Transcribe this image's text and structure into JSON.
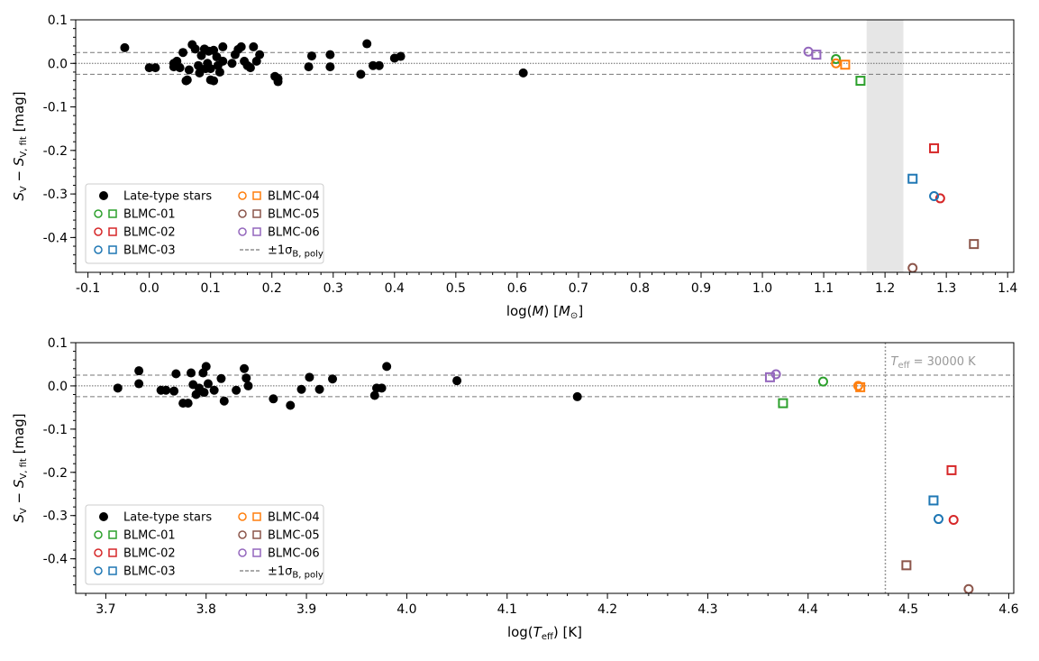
{
  "chart_data": [
    {
      "type": "scatter",
      "panel": "top",
      "xlabel": "log(M) [M_sun]",
      "xlabel_parts": {
        "pre": "log(",
        "var": "M",
        "mid": ") [",
        "sym": "M",
        "sym_sub": "⊙",
        "post": "]"
      },
      "ylabel_parts": {
        "a": "S",
        "a_sub": "V",
        "minus": " − ",
        "b": "S",
        "b_sub": "V, fit",
        "unit": " [mag]"
      },
      "xlim": [
        -0.12,
        1.41
      ],
      "ylim": [
        -0.48,
        0.1
      ],
      "xticks": [
        -0.1,
        0.0,
        0.1,
        0.2,
        0.3,
        0.4,
        0.5,
        0.6,
        0.7,
        0.8,
        0.9,
        1.0,
        1.1,
        1.2,
        1.3,
        1.4
      ],
      "xtick_labels": [
        "-0.1",
        "0.0",
        "0.1",
        "0.2",
        "0.3",
        "0.4",
        "0.5",
        "0.6",
        "0.7",
        "0.8",
        "0.9",
        "1.0",
        "1.1",
        "1.2",
        "1.3",
        "1.4"
      ],
      "yticks": [
        0.1,
        0.0,
        -0.1,
        -0.2,
        -0.3,
        -0.4
      ],
      "ytick_labels": [
        "0.1",
        "0.0",
        "-0.1",
        "-0.2",
        "-0.3",
        "-0.4"
      ],
      "sigma": 0.025,
      "shaded_band": [
        1.17,
        1.23
      ],
      "late_type": [
        [
          -0.04,
          0.036
        ],
        [
          0.0,
          -0.01
        ],
        [
          0.01,
          -0.01
        ],
        [
          0.04,
          -0.008
        ],
        [
          0.04,
          0.0
        ],
        [
          0.045,
          0.005
        ],
        [
          0.05,
          -0.01
        ],
        [
          0.055,
          0.025
        ],
        [
          0.06,
          -0.04
        ],
        [
          0.062,
          -0.038
        ],
        [
          0.065,
          -0.015
        ],
        [
          0.07,
          0.043
        ],
        [
          0.075,
          0.033
        ],
        [
          0.08,
          -0.005
        ],
        [
          0.082,
          -0.022
        ],
        [
          0.085,
          0.018
        ],
        [
          0.09,
          0.033
        ],
        [
          0.092,
          -0.012
        ],
        [
          0.095,
          0.0
        ],
        [
          0.097,
          0.028
        ],
        [
          0.1,
          -0.012
        ],
        [
          0.1,
          -0.038
        ],
        [
          0.105,
          -0.04
        ],
        [
          0.105,
          0.03
        ],
        [
          0.11,
          0.015
        ],
        [
          0.112,
          -0.005
        ],
        [
          0.115,
          -0.02
        ],
        [
          0.12,
          0.005
        ],
        [
          0.12,
          0.038
        ],
        [
          0.135,
          0.0
        ],
        [
          0.14,
          0.02
        ],
        [
          0.145,
          0.032
        ],
        [
          0.15,
          0.038
        ],
        [
          0.155,
          0.005
        ],
        [
          0.16,
          -0.005
        ],
        [
          0.165,
          -0.01
        ],
        [
          0.17,
          0.038
        ],
        [
          0.175,
          0.005
        ],
        [
          0.18,
          0.02
        ],
        [
          0.205,
          -0.03
        ],
        [
          0.21,
          -0.035
        ],
        [
          0.21,
          -0.042
        ],
        [
          0.26,
          -0.008
        ],
        [
          0.265,
          0.017
        ],
        [
          0.295,
          -0.008
        ],
        [
          0.295,
          0.02
        ],
        [
          0.345,
          -0.025
        ],
        [
          0.355,
          0.045
        ],
        [
          0.365,
          -0.005
        ],
        [
          0.375,
          -0.005
        ],
        [
          0.4,
          0.012
        ],
        [
          0.41,
          0.016
        ],
        [
          0.61,
          -0.022
        ]
      ],
      "blmc": [
        {
          "name": "BLMC-01",
          "color": "#2ca02c",
          "circle": [
            1.12,
            0.01
          ],
          "square": [
            1.16,
            -0.04
          ]
        },
        {
          "name": "BLMC-02",
          "color": "#d62728",
          "circle": [
            1.29,
            -0.31
          ],
          "square": [
            1.28,
            -0.195
          ]
        },
        {
          "name": "BLMC-03",
          "color": "#1f77b4",
          "circle": [
            1.28,
            -0.305
          ],
          "square": [
            1.245,
            -0.265
          ]
        },
        {
          "name": "BLMC-04",
          "color": "#ff7f0e",
          "circle": [
            1.12,
            0.0
          ],
          "square": [
            1.135,
            -0.003
          ]
        },
        {
          "name": "BLMC-05",
          "color": "#8c564b",
          "circle": [
            1.245,
            -0.47
          ],
          "square": [
            1.345,
            -0.415
          ]
        },
        {
          "name": "BLMC-06",
          "color": "#9467bd",
          "circle": [
            1.075,
            0.027
          ],
          "square": [
            1.088,
            0.02
          ]
        }
      ]
    },
    {
      "type": "scatter",
      "panel": "bottom",
      "xlabel": "log(T_eff) [K]",
      "xlabel_parts": {
        "pre": "log(",
        "var": "T",
        "var_sub": "eff",
        "post": ") [K]"
      },
      "ylabel_parts": {
        "a": "S",
        "a_sub": "V",
        "minus": " − ",
        "b": "S",
        "b_sub": "V, fit",
        "unit": " [mag]"
      },
      "xlim": [
        3.67,
        4.605
      ],
      "ylim": [
        -0.48,
        0.1
      ],
      "xticks": [
        3.7,
        3.8,
        3.9,
        4.0,
        4.1,
        4.2,
        4.3,
        4.4,
        4.5,
        4.6
      ],
      "xtick_labels": [
        "3.7",
        "3.8",
        "3.9",
        "4.0",
        "4.1",
        "4.2",
        "4.3",
        "4.4",
        "4.5",
        "4.6"
      ],
      "yticks": [
        0.1,
        0.0,
        -0.1,
        -0.2,
        -0.3,
        -0.4
      ],
      "ytick_labels": [
        "0.1",
        "0.0",
        "-0.1",
        "-0.2",
        "-0.3",
        "-0.4"
      ],
      "sigma": 0.025,
      "vline": 4.477,
      "vline_label": {
        "pre": "T",
        "sub": "eff",
        "post": " = 30000 K"
      },
      "late_type": [
        [
          3.712,
          -0.005
        ],
        [
          3.733,
          0.035
        ],
        [
          3.733,
          0.005
        ],
        [
          3.755,
          -0.01
        ],
        [
          3.76,
          -0.01
        ],
        [
          3.768,
          -0.012
        ],
        [
          3.77,
          0.028
        ],
        [
          3.777,
          -0.04
        ],
        [
          3.782,
          -0.04
        ],
        [
          3.785,
          0.03
        ],
        [
          3.787,
          0.003
        ],
        [
          3.79,
          -0.02
        ],
        [
          3.793,
          -0.005
        ],
        [
          3.797,
          0.03
        ],
        [
          3.798,
          -0.015
        ],
        [
          3.8,
          0.045
        ],
        [
          3.802,
          0.005
        ],
        [
          3.808,
          -0.01
        ],
        [
          3.815,
          0.017
        ],
        [
          3.818,
          -0.035
        ],
        [
          3.83,
          -0.01
        ],
        [
          3.838,
          0.04
        ],
        [
          3.84,
          0.018
        ],
        [
          3.842,
          0.0
        ],
        [
          3.867,
          -0.03
        ],
        [
          3.884,
          -0.045
        ],
        [
          3.895,
          -0.008
        ],
        [
          3.903,
          0.02
        ],
        [
          3.913,
          -0.008
        ],
        [
          3.926,
          0.016
        ],
        [
          3.968,
          -0.022
        ],
        [
          3.97,
          -0.005
        ],
        [
          3.975,
          -0.005
        ],
        [
          3.98,
          0.045
        ],
        [
          4.05,
          0.012
        ],
        [
          4.17,
          -0.025
        ]
      ],
      "blmc": [
        {
          "name": "BLMC-01",
          "color": "#2ca02c",
          "circle": [
            4.415,
            0.01
          ],
          "square": [
            4.375,
            -0.04
          ]
        },
        {
          "name": "BLMC-02",
          "color": "#d62728",
          "circle": [
            4.545,
            -0.31
          ],
          "square": [
            4.543,
            -0.195
          ]
        },
        {
          "name": "BLMC-03",
          "color": "#1f77b4",
          "circle": [
            4.53,
            -0.308
          ],
          "square": [
            4.525,
            -0.265
          ]
        },
        {
          "name": "BLMC-04",
          "color": "#ff7f0e",
          "circle": [
            4.45,
            0.0
          ],
          "square": [
            4.452,
            -0.003
          ]
        },
        {
          "name": "BLMC-05",
          "color": "#8c564b",
          "circle": [
            4.56,
            -0.47
          ],
          "square": [
            4.498,
            -0.415
          ]
        },
        {
          "name": "BLMC-06",
          "color": "#9467bd",
          "circle": [
            4.368,
            0.027
          ],
          "square": [
            4.362,
            0.02
          ]
        }
      ]
    }
  ],
  "legend": {
    "late_type": "Late-type stars",
    "names": [
      "BLMC-01",
      "BLMC-02",
      "BLMC-03",
      "BLMC-04",
      "BLMC-05",
      "BLMC-06"
    ],
    "colors": [
      "#2ca02c",
      "#d62728",
      "#1f77b4",
      "#ff7f0e",
      "#8c564b",
      "#9467bd"
    ],
    "sigma_label": {
      "pre": "±1σ",
      "sub": "B, poly"
    },
    "placement": "lower-left"
  }
}
